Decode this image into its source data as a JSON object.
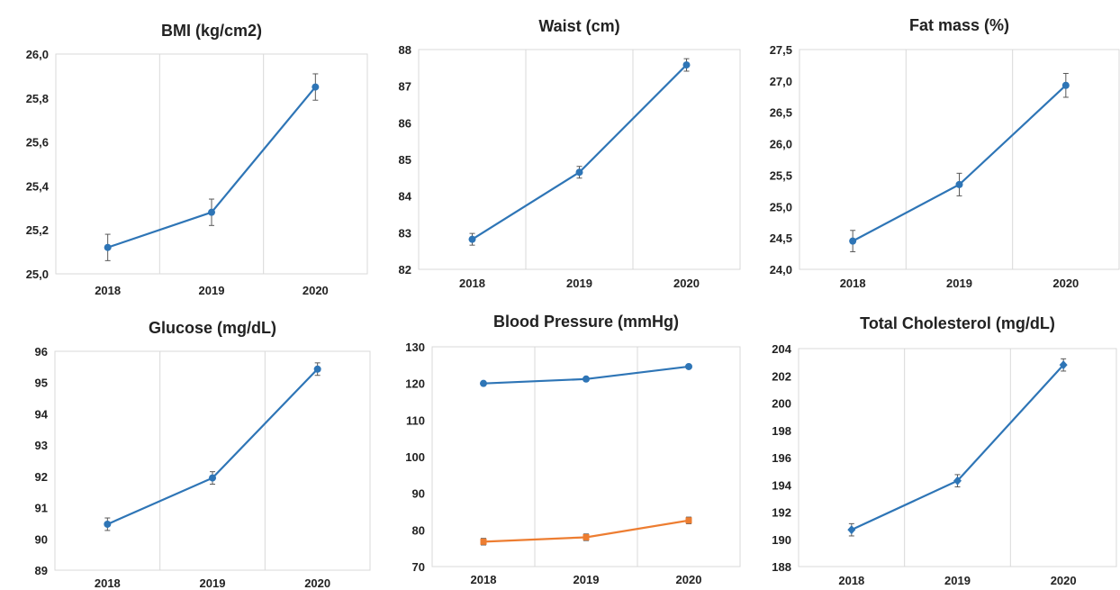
{
  "chart_data": [
    {
      "type": "line",
      "title": "BMI (kg/cm2)",
      "categories": [
        "2018",
        "2019",
        "2020"
      ],
      "ylim": [
        25.0,
        26.0
      ],
      "yticks": [
        "25,0",
        "25,2",
        "25,4",
        "25,6",
        "25,8",
        "26,0"
      ],
      "grid": true,
      "series": [
        {
          "values": [
            25.12,
            25.28,
            25.85
          ],
          "error": [
            0.06,
            0.06,
            0.06
          ],
          "color": "#2e75b6",
          "marker": "circle"
        }
      ]
    },
    {
      "type": "line",
      "title": "Waist (cm)",
      "categories": [
        "2018",
        "2019",
        "2020"
      ],
      "ylim": [
        82,
        88
      ],
      "yticks": [
        "82",
        "83",
        "84",
        "85",
        "86",
        "87",
        "88"
      ],
      "grid": true,
      "series": [
        {
          "values": [
            82.82,
            84.65,
            87.58
          ],
          "error": [
            0.16,
            0.16,
            0.17
          ],
          "color": "#2e75b6",
          "marker": "circle"
        }
      ]
    },
    {
      "type": "line",
      "title": "Fat mass (%)",
      "categories": [
        "2018",
        "2019",
        "2020"
      ],
      "ylim": [
        24.0,
        27.5
      ],
      "yticks": [
        "24,0",
        "24,5",
        "25,0",
        "25,5",
        "26,0",
        "26,5",
        "27,0",
        "27,5"
      ],
      "grid": true,
      "series": [
        {
          "values": [
            24.45,
            25.35,
            26.93
          ],
          "error": [
            0.17,
            0.18,
            0.19
          ],
          "color": "#2e75b6",
          "marker": "circle"
        }
      ]
    },
    {
      "type": "line",
      "title": "Glucose (mg/dL)",
      "categories": [
        "2018",
        "2019",
        "2020"
      ],
      "ylim": [
        89,
        96
      ],
      "yticks": [
        "89",
        "90",
        "91",
        "92",
        "93",
        "94",
        "95",
        "96"
      ],
      "grid": true,
      "series": [
        {
          "values": [
            90.47,
            91.95,
            95.43
          ],
          "error": [
            0.2,
            0.2,
            0.2
          ],
          "color": "#2e75b6",
          "marker": "circle"
        }
      ]
    },
    {
      "type": "line",
      "title": "Blood Pressure (mmHg)",
      "categories": [
        "2018",
        "2019",
        "2020"
      ],
      "ylim": [
        70,
        130
      ],
      "yticks": [
        "70",
        "80",
        "90",
        "100",
        "110",
        "120",
        "130"
      ],
      "grid": true,
      "series": [
        {
          "values": [
            120.0,
            121.2,
            124.6
          ],
          "error": [
            0.4,
            0.4,
            0.4
          ],
          "color": "#2e75b6",
          "marker": "circle"
        },
        {
          "values": [
            76.8,
            78.0,
            82.6
          ],
          "error": [
            0.9,
            0.9,
            0.9
          ],
          "color": "#ed7d31",
          "marker": "square"
        }
      ]
    },
    {
      "type": "line",
      "title": "Total Cholesterol (mg/dL)",
      "categories": [
        "2018",
        "2019",
        "2020"
      ],
      "ylim": [
        188,
        204
      ],
      "yticks": [
        "188",
        "190",
        "192",
        "194",
        "196",
        "198",
        "200",
        "202",
        "204"
      ],
      "grid": true,
      "series": [
        {
          "values": [
            190.7,
            194.3,
            202.8
          ],
          "error": [
            0.45,
            0.45,
            0.45
          ],
          "color": "#2e75b6",
          "marker": "diamond"
        }
      ]
    }
  ]
}
